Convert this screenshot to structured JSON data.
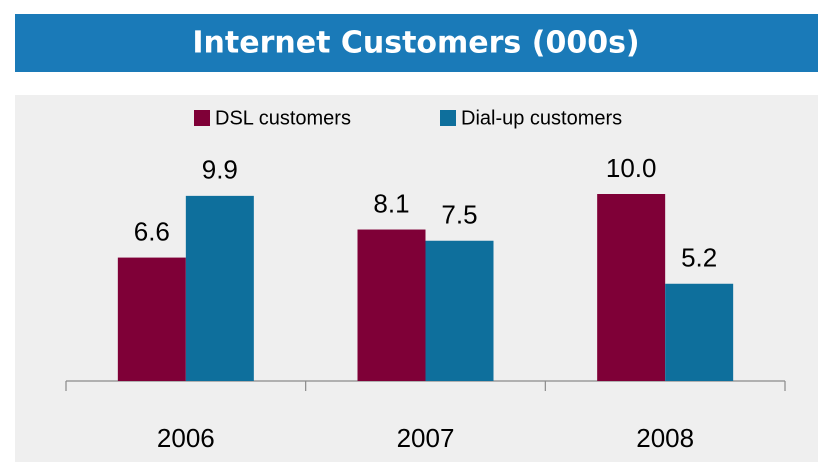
{
  "chart_data": {
    "type": "bar",
    "title": "Internet Customers (000s)",
    "categories": [
      "2006",
      "2007",
      "2008"
    ],
    "series": [
      {
        "name": "DSL customers",
        "color": "#7f0037",
        "values": [
          6.6,
          8.1,
          10.0
        ],
        "value_labels": [
          "6.6",
          "8.1",
          "10.0"
        ]
      },
      {
        "name": "Dial-up customers",
        "color": "#0e6f9c",
        "values": [
          9.9,
          7.5,
          5.2
        ],
        "value_labels": [
          "9.9",
          "7.5",
          "5.2"
        ]
      }
    ]
  }
}
